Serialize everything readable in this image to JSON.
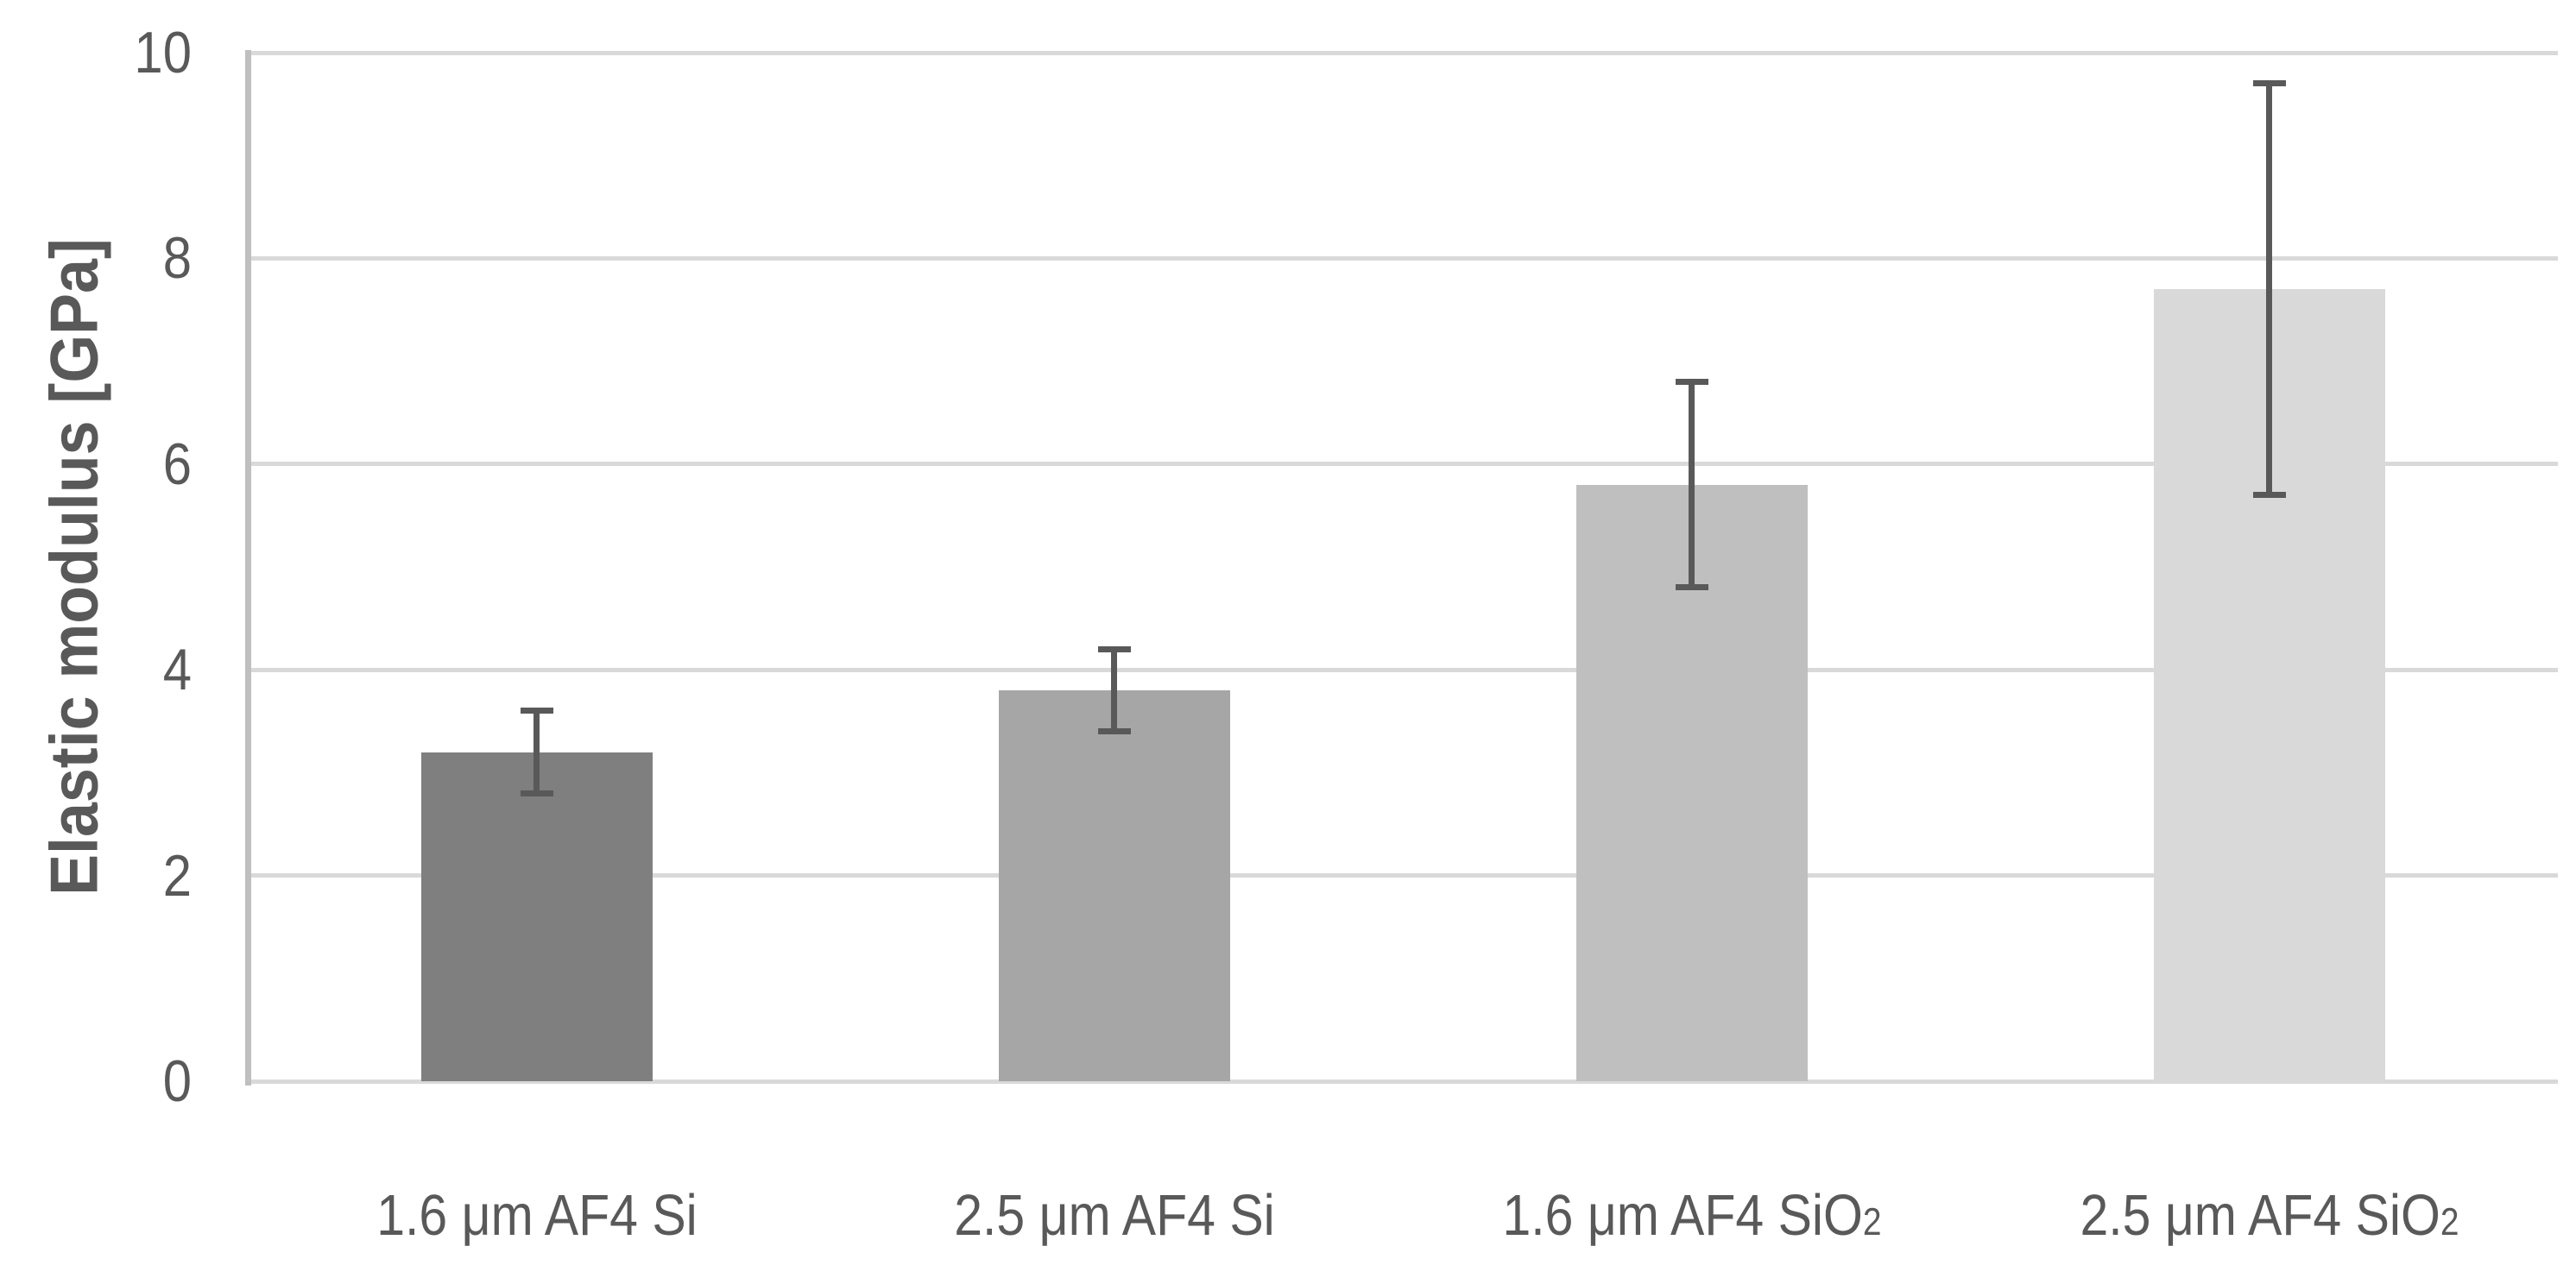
{
  "chart_data": {
    "type": "bar",
    "title": "",
    "xlabel": "",
    "ylabel": "Elastic modulus [GPa]",
    "ylim": [
      0,
      10
    ],
    "yticks": [
      0,
      2,
      4,
      6,
      8,
      10
    ],
    "grid": true,
    "legend_position": "none",
    "categories": [
      "1.6 μm AF4 Si",
      "2.5 μm AF4 Si",
      "1.6 μm AF4 SiO2",
      "2.5 μm AF4 SiO2"
    ],
    "categories_rich": [
      [
        {
          "t": "1.6 μm AF4 Si",
          "sub": false
        }
      ],
      [
        {
          "t": "2.5 μm AF4 Si",
          "sub": false
        }
      ],
      [
        {
          "t": "1.6 μm AF4 SiO",
          "sub": false
        },
        {
          "t": "2",
          "sub": true
        }
      ],
      [
        {
          "t": "2.5 μm AF4 SiO",
          "sub": false
        },
        {
          "t": "2",
          "sub": true
        }
      ]
    ],
    "series": [
      {
        "name": "Elastic modulus",
        "values": [
          3.2,
          3.8,
          5.8,
          7.7
        ],
        "errors_plus": [
          0.4,
          0.4,
          1.0,
          2.0
        ],
        "errors_minus": [
          0.4,
          0.4,
          1.0,
          2.0
        ]
      }
    ],
    "colors": {
      "bar_fills": [
        "#7f7f7f",
        "#a6a6a6",
        "#bfbfbf",
        "#d9d9d9"
      ],
      "error_bar": "#595959",
      "gridline": "#d9d9d9",
      "axis_line": "#bfbfbf",
      "text": "#595959",
      "background": "#ffffff"
    }
  }
}
